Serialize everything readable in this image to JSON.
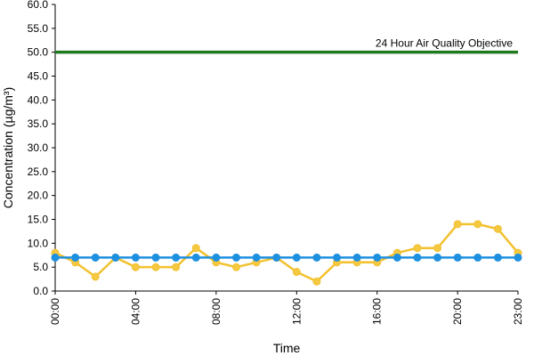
{
  "chart_data": {
    "type": "line",
    "xlabel": "Time",
    "ylabel": "Concentration (µg/m³)",
    "ylim": [
      0,
      60
    ],
    "yticks": [
      "0.0",
      "5.0",
      "10.0",
      "15.0",
      "20.0",
      "25.0",
      "30.0",
      "35.0",
      "40.0",
      "45.0",
      "50.0",
      "55.0",
      "60.0"
    ],
    "x_categories": [
      "00:00",
      "01:00",
      "02:00",
      "03:00",
      "04:00",
      "05:00",
      "06:00",
      "07:00",
      "08:00",
      "09:00",
      "10:00",
      "11:00",
      "12:00",
      "13:00",
      "14:00",
      "15:00",
      "16:00",
      "17:00",
      "18:00",
      "19:00",
      "20:00",
      "21:00",
      "22:00",
      "23:00"
    ],
    "xtick_labels": [
      "00:00",
      "04:00",
      "08:00",
      "12:00",
      "16:00",
      "20:00",
      "23:00"
    ],
    "xtick_indices": [
      0,
      4,
      8,
      12,
      16,
      20,
      23
    ],
    "series": [
      {
        "color": "#f2c12e",
        "marker_fill": "#f5c842",
        "values": [
          8,
          6,
          3,
          7,
          5,
          5,
          5,
          9,
          6,
          5,
          6,
          7,
          4,
          2,
          6,
          6,
          6,
          8,
          9,
          9,
          14,
          14,
          13,
          8
        ]
      },
      {
        "color": "#1e90e0",
        "marker_fill": "#1e90e0",
        "values": [
          7,
          7,
          7,
          7,
          7,
          7,
          7,
          7,
          7,
          7,
          7,
          7,
          7,
          7,
          7,
          7,
          7,
          7,
          7,
          7,
          7,
          7,
          7,
          7
        ]
      }
    ],
    "reference_line": {
      "label": "24 Hour Air Quality Objective",
      "value": 50,
      "color": "#1f7a1f"
    },
    "grid": false
  }
}
